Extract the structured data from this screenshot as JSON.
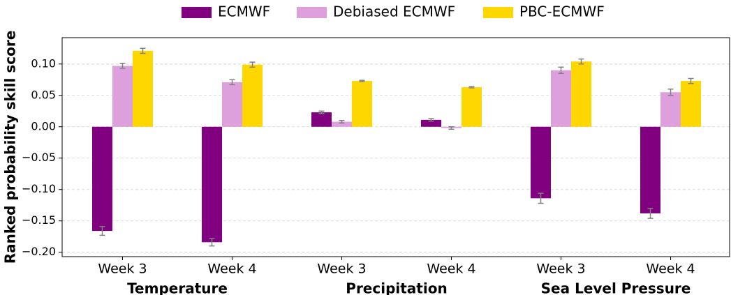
{
  "chart_data": {
    "type": "bar",
    "ylabel": "Ranked probability skill score",
    "categories": [
      "Week 3",
      "Week 4",
      "Week 3",
      "Week 4",
      "Week 3",
      "Week 4"
    ],
    "groups": [
      "Temperature",
      "Precipitation",
      "Sea Level Pressure"
    ],
    "series": [
      {
        "name": "ECMWF",
        "color": "#800080",
        "values": [
          -0.166,
          -0.184,
          0.023,
          0.011,
          -0.114,
          -0.138
        ],
        "errors": [
          0.007,
          0.006,
          0.002,
          0.002,
          0.008,
          0.008
        ]
      },
      {
        "name": "Debiased ECMWF",
        "color": "#dda0dd",
        "values": [
          0.097,
          0.071,
          0.008,
          -0.002,
          0.09,
          0.055
        ],
        "errors": [
          0.004,
          0.004,
          0.002,
          0.002,
          0.005,
          0.005
        ]
      },
      {
        "name": "PBC-ECMWF",
        "color": "#ffd700",
        "values": [
          0.121,
          0.099,
          0.073,
          0.063,
          0.104,
          0.073
        ],
        "errors": [
          0.004,
          0.004,
          0.001,
          0.001,
          0.004,
          0.004
        ]
      }
    ],
    "error_color": "#808080",
    "ylim": [
      -0.207,
      0.142
    ],
    "yticks": [
      {
        "value": -0.2,
        "label": "−0.20"
      },
      {
        "value": -0.15,
        "label": "−0.15"
      },
      {
        "value": -0.1,
        "label": "−0.10"
      },
      {
        "value": -0.05,
        "label": "−0.05"
      },
      {
        "value": 0,
        "label": "0.00"
      },
      0.05,
      {
        "value": 0.1,
        "label": "0.10"
      }
    ],
    "grid": true,
    "legend": "top"
  }
}
